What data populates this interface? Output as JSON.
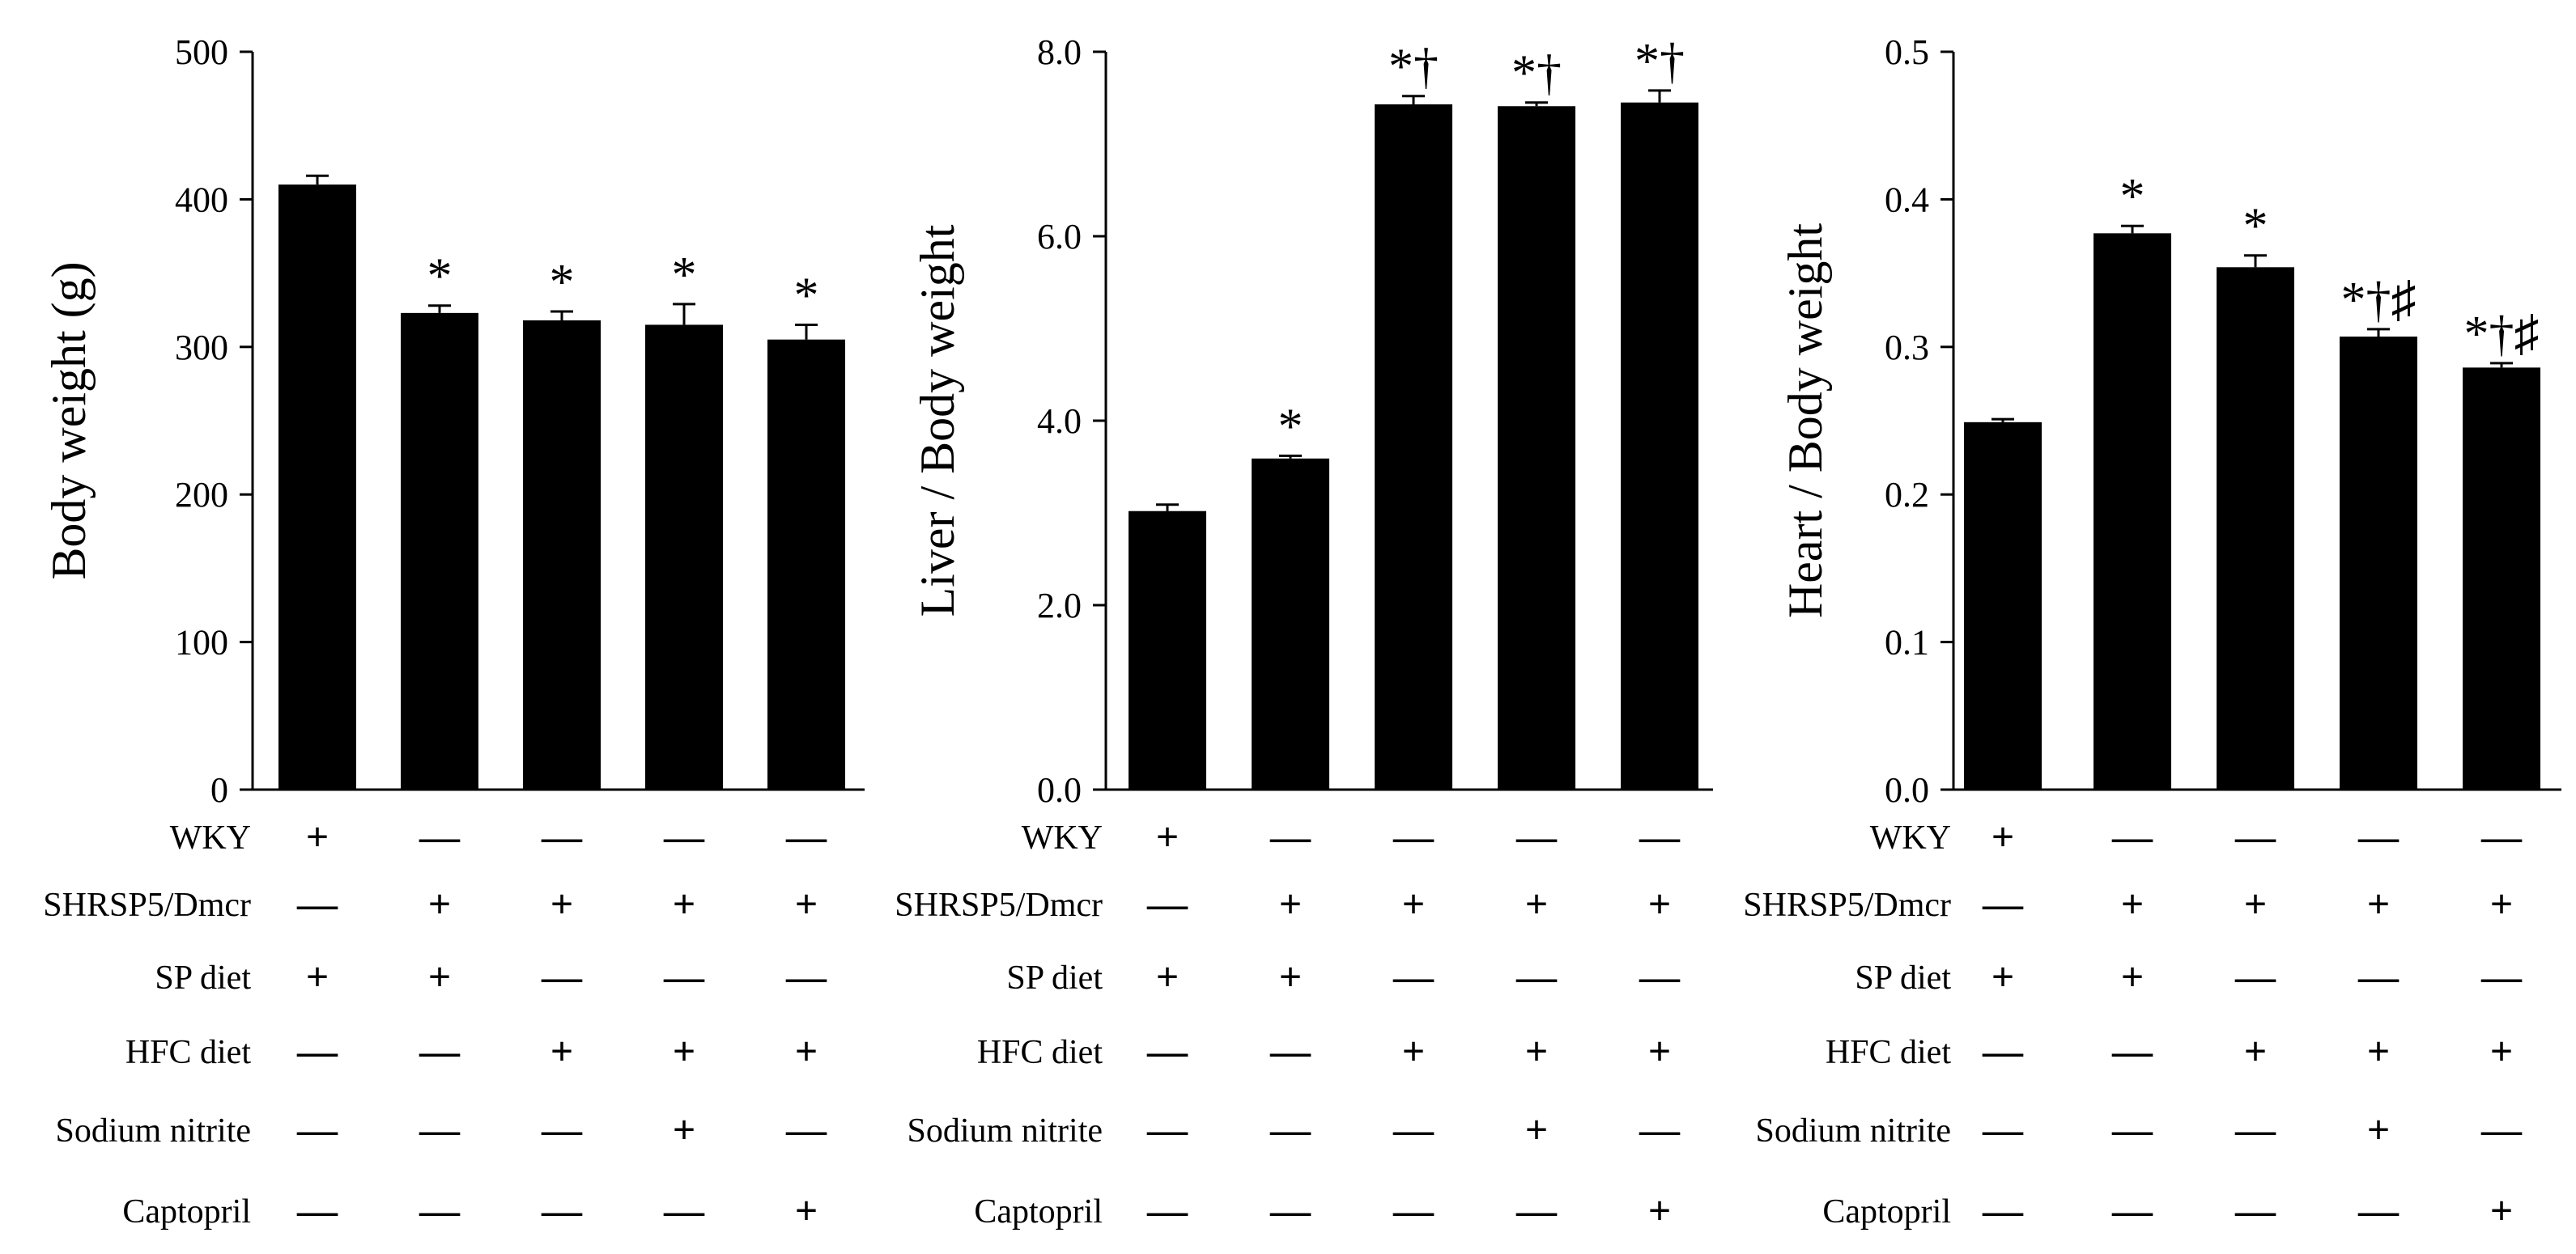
{
  "chart_data": [
    {
      "type": "bar",
      "ylabel": "Body weight (g)",
      "ylim": [
        0,
        500
      ],
      "yticks": [
        "0",
        "100",
        "200",
        "300",
        "400",
        "500"
      ],
      "values": [
        410,
        323,
        318,
        315,
        305
      ],
      "errors": [
        6,
        5,
        6,
        14,
        10
      ],
      "significance": [
        "",
        "*",
        "*",
        "*",
        "*"
      ]
    },
    {
      "type": "bar",
      "ylabel": "Liver / Body weight",
      "ylim": [
        0,
        8.0
      ],
      "yticks": [
        "0.0",
        "2.0",
        "4.0",
        "6.0",
        "8.0"
      ],
      "values": [
        3.02,
        3.59,
        7.43,
        7.41,
        7.45
      ],
      "errors": [
        0.07,
        0.03,
        0.09,
        0.04,
        0.13
      ],
      "significance": [
        "",
        "*",
        "*†",
        "*†",
        "*†"
      ]
    },
    {
      "type": "bar",
      "ylabel": "Heart / Body weight",
      "ylim": [
        0,
        0.5
      ],
      "yticks": [
        "0.0",
        "0.1",
        "0.2",
        "0.3",
        "0.4",
        "0.5"
      ],
      "values": [
        0.249,
        0.377,
        0.354,
        0.307,
        0.286
      ],
      "errors": [
        0.002,
        0.005,
        0.008,
        0.005,
        0.003
      ],
      "significance": [
        "",
        "*",
        "*",
        "*†♯",
        "*†♯"
      ]
    }
  ],
  "condition_table": {
    "rows": [
      {
        "label": "WKY",
        "marks": [
          "+",
          "—",
          "—",
          "—",
          "—"
        ]
      },
      {
        "label": "SHRSP5/Dmcr",
        "marks": [
          "—",
          "+",
          "+",
          "+",
          "+"
        ]
      },
      {
        "label": "SP diet",
        "marks": [
          "+",
          "+",
          "—",
          "—",
          "—"
        ]
      },
      {
        "label": "HFC  diet",
        "marks": [
          "—",
          "—",
          "+",
          "+",
          "+"
        ]
      },
      {
        "label": "Sodium nitrite",
        "marks": [
          "—",
          "—",
          "—",
          "+",
          "—"
        ]
      },
      {
        "label": "Captopril",
        "marks": [
          "—",
          "—",
          "—",
          "—",
          "+"
        ]
      }
    ]
  }
}
